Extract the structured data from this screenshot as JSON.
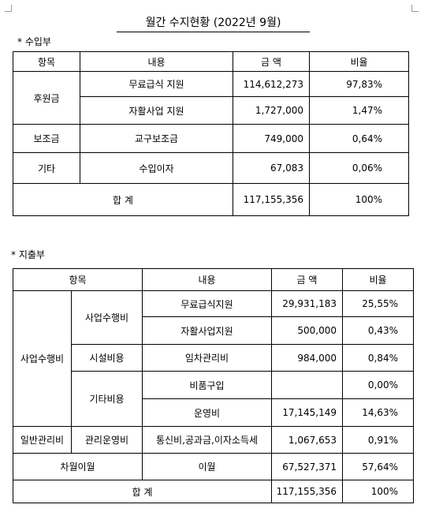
{
  "title": "월간 수지현황 (2022년 9월)",
  "income": {
    "label": "* 수입부",
    "header": [
      "항목",
      "내용",
      "금 액",
      "비율"
    ],
    "rows": [
      [
        "후원금",
        "무료급식 지원",
        "114,612,273",
        "97,83%"
      ],
      [
        "자활사업 지원",
        "1,727,000",
        "1,47%"
      ],
      [
        "보조금",
        "교구보조금",
        "749,000",
        "0,64%"
      ],
      [
        "기타",
        "수입이자",
        "67,083",
        "0,06%"
      ],
      [
        "합 계",
        "117,155,356",
        "100%"
      ]
    ]
  },
  "expense": {
    "label": "* 지출부",
    "header": [
      "항목",
      "내용",
      "금 액",
      "비율"
    ],
    "rows": [
      [
        "사업수행비",
        "사업수행비",
        "무료급식지원",
        "29,931,183",
        "25,55%"
      ],
      [
        "자활사업지원",
        "500,000",
        "0,43%"
      ],
      [
        "시설비용",
        "임차관리비",
        "984,000",
        "0,84%"
      ],
      [
        "기타비용",
        "비품구입",
        "0,00%"
      ],
      [
        "운영비",
        "17,145,149",
        "14,63%"
      ],
      [
        "일반관리비",
        "관리운영비",
        "통신비,공과금,이자소득세",
        "1,067,653",
        "0,91%"
      ],
      [
        "차월이월",
        "이월",
        "67,527,371",
        "57,64%"
      ],
      [
        "합 계",
        "117,155,356",
        "100%"
      ]
    ]
  }
}
